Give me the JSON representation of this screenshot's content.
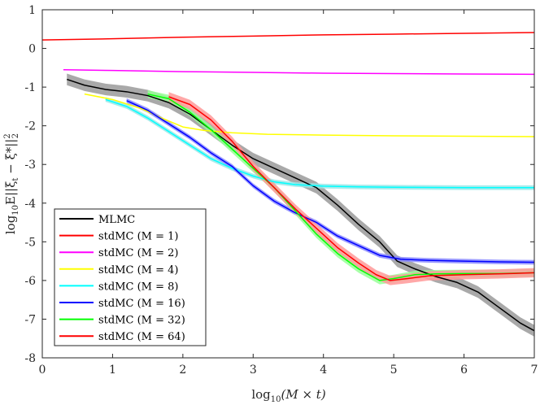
{
  "chart_data": {
    "type": "line",
    "title": "",
    "xlabel_parts": [
      "log",
      "10",
      "(M × t)"
    ],
    "ylabel_parts": [
      "log",
      "10",
      "E||ξ",
      "t",
      " − ξ*||",
      "2",
      "2"
    ],
    "xlim": [
      0,
      7
    ],
    "ylim": [
      -8,
      1
    ],
    "x_ticks": [
      "0",
      "1",
      "2",
      "3",
      "4",
      "5",
      "6",
      "7"
    ],
    "y_ticks": [
      "1",
      "0",
      "-1",
      "-2",
      "-3",
      "-4",
      "-5",
      "-6",
      "-7",
      "-8"
    ],
    "grid": false,
    "legend_position": "bottom-left",
    "series": [
      {
        "name": "MLMC",
        "color": "#000000",
        "band": "#9a9a9a",
        "band_width": 0.15,
        "points": [
          [
            0.35,
            -0.8
          ],
          [
            0.6,
            -0.95
          ],
          [
            0.9,
            -1.06
          ],
          [
            1.2,
            -1.12
          ],
          [
            1.5,
            -1.22
          ],
          [
            1.8,
            -1.4
          ],
          [
            2.1,
            -1.7
          ],
          [
            2.4,
            -2.1
          ],
          [
            2.7,
            -2.5
          ],
          [
            3.0,
            -2.85
          ],
          [
            3.3,
            -3.1
          ],
          [
            3.6,
            -3.35
          ],
          [
            3.9,
            -3.6
          ],
          [
            4.2,
            -4.05
          ],
          [
            4.5,
            -4.55
          ],
          [
            4.8,
            -5.0
          ],
          [
            5.05,
            -5.5
          ],
          [
            5.3,
            -5.7
          ],
          [
            5.6,
            -5.9
          ],
          [
            5.9,
            -6.05
          ],
          [
            6.2,
            -6.3
          ],
          [
            6.5,
            -6.7
          ],
          [
            6.8,
            -7.1
          ],
          [
            7.0,
            -7.3
          ]
        ]
      },
      {
        "name": "stdMC (M = 1)",
        "color": "#ff0000",
        "points": [
          [
            0,
            0.22
          ],
          [
            1,
            0.25
          ],
          [
            2,
            0.29
          ],
          [
            3,
            0.32
          ],
          [
            4,
            0.35
          ],
          [
            5,
            0.37
          ],
          [
            6,
            0.39
          ],
          [
            7,
            0.41
          ]
        ]
      },
      {
        "name": "stdMC (M = 2)",
        "color": "#ff00ff",
        "points": [
          [
            0.3,
            -0.55
          ],
          [
            1,
            -0.57
          ],
          [
            2,
            -0.6
          ],
          [
            3,
            -0.62
          ],
          [
            4,
            -0.64
          ],
          [
            5,
            -0.65
          ],
          [
            6,
            -0.66
          ],
          [
            7,
            -0.67
          ]
        ]
      },
      {
        "name": "stdMC (M = 4)",
        "color": "#ffff00",
        "points": [
          [
            0.6,
            -1.18
          ],
          [
            1.0,
            -1.32
          ],
          [
            1.4,
            -1.55
          ],
          [
            1.7,
            -1.8
          ],
          [
            2.0,
            -2.03
          ],
          [
            2.3,
            -2.12
          ],
          [
            2.7,
            -2.18
          ],
          [
            3.2,
            -2.22
          ],
          [
            4,
            -2.24
          ],
          [
            5,
            -2.26
          ],
          [
            6,
            -2.27
          ],
          [
            7,
            -2.28
          ]
        ]
      },
      {
        "name": "stdMC (M = 8)",
        "color": "#00ffff",
        "band": "#9ae8e8",
        "band_width": 0.06,
        "points": [
          [
            0.9,
            -1.32
          ],
          [
            1.2,
            -1.5
          ],
          [
            1.5,
            -1.8
          ],
          [
            1.8,
            -2.15
          ],
          [
            2.1,
            -2.5
          ],
          [
            2.4,
            -2.85
          ],
          [
            2.7,
            -3.1
          ],
          [
            3.0,
            -3.3
          ],
          [
            3.3,
            -3.45
          ],
          [
            3.6,
            -3.52
          ],
          [
            4.0,
            -3.56
          ],
          [
            4.5,
            -3.58
          ],
          [
            5,
            -3.59
          ],
          [
            6,
            -3.6
          ],
          [
            7,
            -3.6
          ]
        ]
      },
      {
        "name": "stdMC (M = 16)",
        "color": "#0000ff",
        "band": "#8b8bff",
        "band_width": 0.06,
        "points": [
          [
            1.2,
            -1.35
          ],
          [
            1.5,
            -1.6
          ],
          [
            1.8,
            -1.95
          ],
          [
            2.1,
            -2.3
          ],
          [
            2.4,
            -2.7
          ],
          [
            2.7,
            -3.05
          ],
          [
            3.0,
            -3.55
          ],
          [
            3.3,
            -3.95
          ],
          [
            3.6,
            -4.25
          ],
          [
            3.9,
            -4.5
          ],
          [
            4.2,
            -4.85
          ],
          [
            4.5,
            -5.1
          ],
          [
            4.8,
            -5.35
          ],
          [
            5.1,
            -5.45
          ],
          [
            5.5,
            -5.48
          ],
          [
            6,
            -5.5
          ],
          [
            6.5,
            -5.52
          ],
          [
            7,
            -5.53
          ]
        ]
      },
      {
        "name": "stdMC (M = 32)",
        "color": "#00ff00",
        "band": "#99ff99",
        "band_width": 0.1,
        "points": [
          [
            1.5,
            -1.18
          ],
          [
            1.8,
            -1.3
          ],
          [
            2.1,
            -1.65
          ],
          [
            2.4,
            -2.1
          ],
          [
            2.7,
            -2.6
          ],
          [
            3.0,
            -3.1
          ],
          [
            3.3,
            -3.6
          ],
          [
            3.6,
            -4.2
          ],
          [
            3.9,
            -4.8
          ],
          [
            4.2,
            -5.3
          ],
          [
            4.5,
            -5.7
          ],
          [
            4.8,
            -6.0
          ],
          [
            5.0,
            -5.95
          ],
          [
            5.3,
            -5.85
          ],
          [
            5.6,
            -5.83
          ],
          [
            6,
            -5.82
          ],
          [
            6.5,
            -5.82
          ],
          [
            7,
            -5.8
          ]
        ]
      },
      {
        "name": "stdMC (M = 64)",
        "color": "#ff0000",
        "band": "#ff9999",
        "band_width": 0.12,
        "points": [
          [
            1.8,
            -1.25
          ],
          [
            2.1,
            -1.45
          ],
          [
            2.4,
            -1.85
          ],
          [
            2.7,
            -2.4
          ],
          [
            3.0,
            -3.05
          ],
          [
            3.3,
            -3.6
          ],
          [
            3.6,
            -4.15
          ],
          [
            3.9,
            -4.65
          ],
          [
            4.2,
            -5.15
          ],
          [
            4.5,
            -5.55
          ],
          [
            4.75,
            -5.85
          ],
          [
            4.95,
            -6.0
          ],
          [
            5.2,
            -5.95
          ],
          [
            5.5,
            -5.88
          ],
          [
            6,
            -5.85
          ],
          [
            6.5,
            -5.83
          ],
          [
            7,
            -5.8
          ]
        ]
      }
    ]
  }
}
